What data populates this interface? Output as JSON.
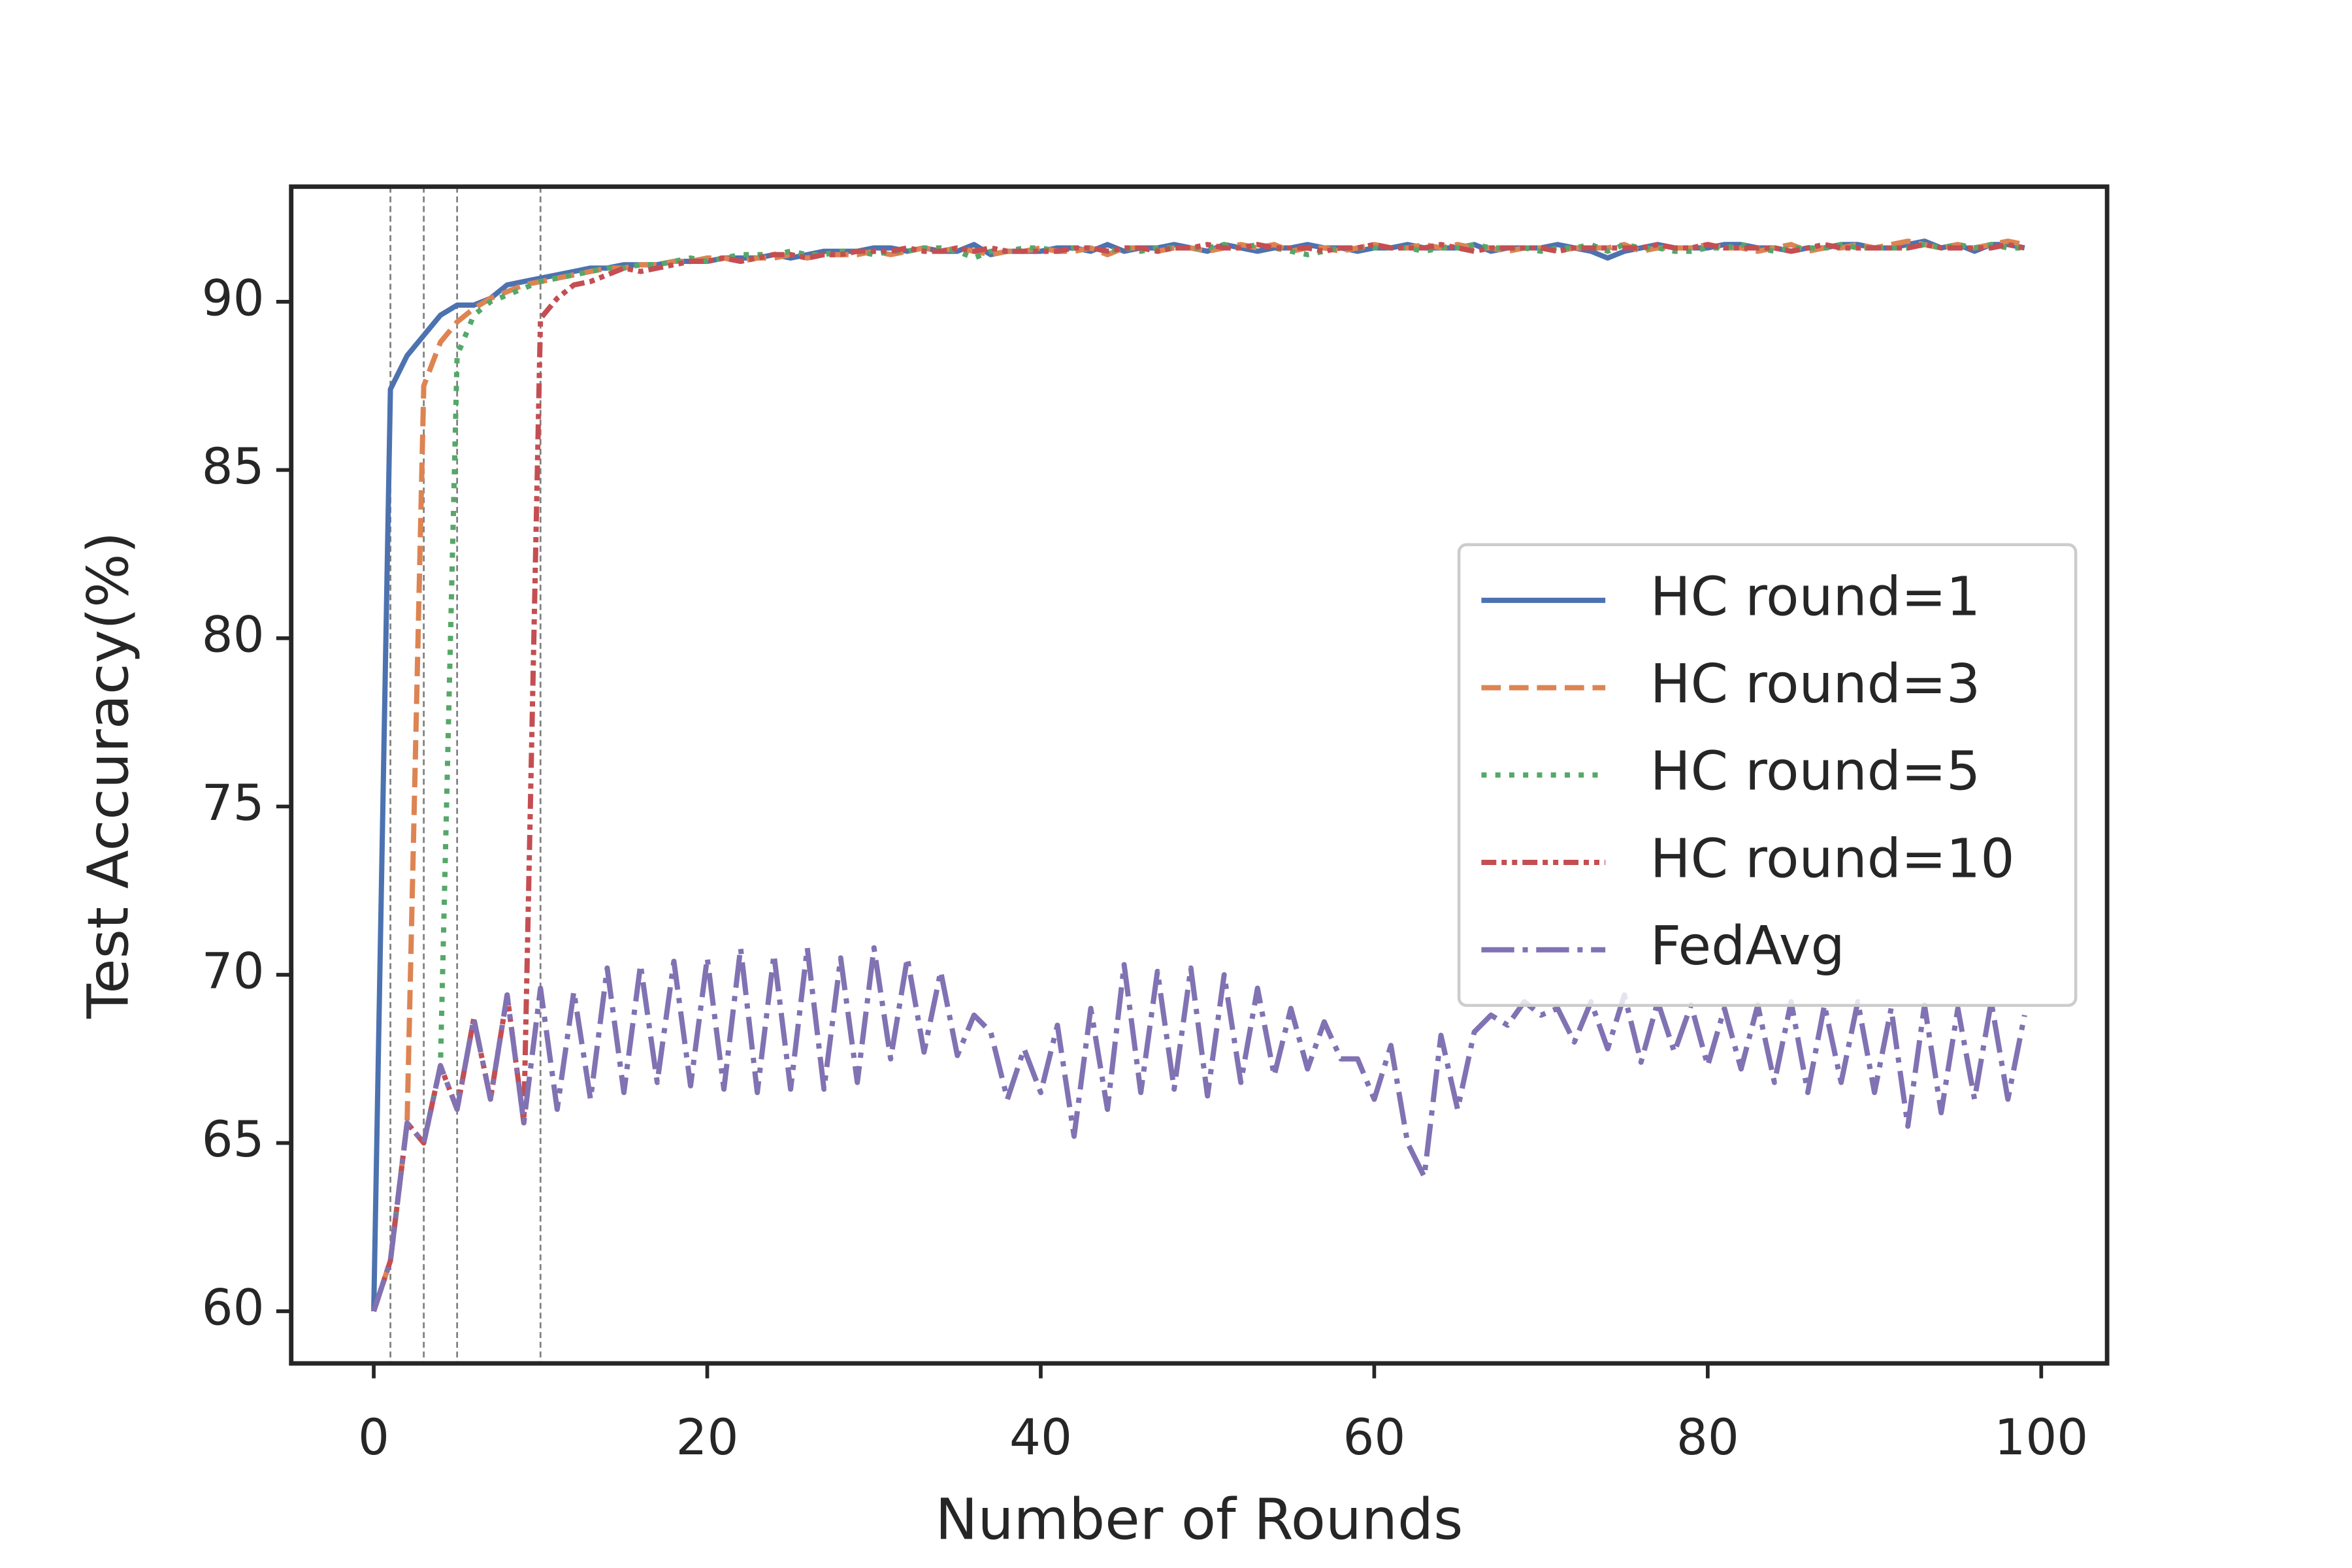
{
  "chart_data": {
    "type": "line",
    "x_label": "Number of Rounds",
    "y_label": "Test Accuracy(%)",
    "x": [
      0,
      1,
      2,
      3,
      4,
      5,
      6,
      7,
      8,
      9,
      10,
      11,
      12,
      13,
      14,
      15,
      16,
      17,
      18,
      19,
      20,
      21,
      22,
      23,
      24,
      25,
      26,
      27,
      28,
      29,
      30,
      31,
      32,
      33,
      34,
      35,
      36,
      37,
      38,
      39,
      40,
      41,
      42,
      43,
      44,
      45,
      46,
      47,
      48,
      49,
      50,
      51,
      52,
      53,
      54,
      55,
      56,
      57,
      58,
      59,
      60,
      61,
      62,
      63,
      64,
      65,
      66,
      67,
      68,
      69,
      70,
      71,
      72,
      73,
      74,
      75,
      76,
      77,
      78,
      79,
      80,
      81,
      82,
      83,
      84,
      85,
      86,
      87,
      88,
      89,
      90,
      91,
      92,
      93,
      94,
      95,
      96,
      97,
      98,
      99
    ],
    "series": [
      {
        "name": "HC round=1",
        "color": "#4c72b0",
        "linestyle": "solid",
        "values": [
          60,
          87.4,
          88.4,
          89.0,
          89.6,
          89.9,
          89.9,
          90.1,
          90.5,
          90.6,
          90.7,
          90.8,
          90.9,
          91.0,
          91.0,
          91.1,
          91.1,
          91.1,
          91.2,
          91.2,
          91.2,
          91.3,
          91.3,
          91.3,
          91.4,
          91.3,
          91.4,
          91.5,
          91.5,
          91.5,
          91.6,
          91.6,
          91.5,
          91.6,
          91.5,
          91.5,
          91.7,
          91.4,
          91.5,
          91.5,
          91.5,
          91.6,
          91.6,
          91.5,
          91.7,
          91.5,
          91.6,
          91.6,
          91.7,
          91.6,
          91.5,
          91.7,
          91.6,
          91.5,
          91.6,
          91.6,
          91.7,
          91.6,
          91.6,
          91.5,
          91.6,
          91.6,
          91.7,
          91.6,
          91.6,
          91.6,
          91.7,
          91.5,
          91.6,
          91.6,
          91.6,
          91.7,
          91.6,
          91.5,
          91.3,
          91.5,
          91.6,
          91.7,
          91.6,
          91.6,
          91.6,
          91.7,
          91.7,
          91.6,
          91.6,
          91.5,
          91.6,
          91.6,
          91.7,
          91.7,
          91.6,
          91.6,
          91.7,
          91.8,
          91.6,
          91.7,
          91.5,
          91.7,
          91.7,
          91.6
        ]
      },
      {
        "name": "HC round=3",
        "color": "#dd8452",
        "linestyle": "dashed",
        "values": [
          60,
          61.5,
          65.6,
          87.5,
          88.8,
          89.4,
          89.8,
          90.1,
          90.3,
          90.5,
          90.6,
          90.7,
          90.8,
          90.9,
          91.0,
          91.0,
          91.1,
          91.1,
          91.2,
          91.2,
          91.3,
          91.3,
          91.2,
          91.3,
          91.3,
          91.4,
          91.3,
          91.4,
          91.4,
          91.4,
          91.5,
          91.4,
          91.5,
          91.6,
          91.5,
          91.6,
          91.5,
          91.4,
          91.5,
          91.5,
          91.6,
          91.5,
          91.5,
          91.6,
          91.4,
          91.6,
          91.6,
          91.5,
          91.6,
          91.6,
          91.5,
          91.6,
          91.7,
          91.6,
          91.7,
          91.5,
          91.6,
          91.6,
          91.5,
          91.6,
          91.7,
          91.6,
          91.6,
          91.7,
          91.6,
          91.7,
          91.6,
          91.6,
          91.5,
          91.6,
          91.6,
          91.5,
          91.6,
          91.6,
          91.6,
          91.7,
          91.5,
          91.6,
          91.6,
          91.6,
          91.7,
          91.6,
          91.6,
          91.5,
          91.6,
          91.7,
          91.5,
          91.6,
          91.6,
          91.7,
          91.6,
          91.7,
          91.8,
          91.7,
          91.6,
          91.7,
          91.6,
          91.7,
          91.8,
          91.7
        ]
      },
      {
        "name": "HC round=5",
        "color": "#55a868",
        "linestyle": "dotted",
        "values": [
          60,
          61.5,
          65.6,
          65.0,
          67.3,
          88.4,
          89.6,
          90.0,
          90.2,
          90.4,
          90.6,
          90.7,
          90.8,
          90.9,
          91.0,
          91.0,
          91.1,
          91.1,
          91.2,
          91.3,
          91.2,
          91.3,
          91.4,
          91.4,
          91.4,
          91.5,
          91.4,
          91.4,
          91.5,
          91.5,
          91.4,
          91.5,
          91.5,
          91.6,
          91.6,
          91.5,
          91.3,
          91.5,
          91.5,
          91.6,
          91.6,
          91.5,
          91.6,
          91.6,
          91.5,
          91.6,
          91.5,
          91.6,
          91.6,
          91.6,
          91.6,
          91.7,
          91.6,
          91.7,
          91.6,
          91.5,
          91.4,
          91.5,
          91.6,
          91.6,
          91.6,
          91.6,
          91.6,
          91.5,
          91.6,
          91.6,
          91.7,
          91.6,
          91.6,
          91.6,
          91.5,
          91.6,
          91.6,
          91.7,
          91.5,
          91.7,
          91.6,
          91.6,
          91.5,
          91.5,
          91.6,
          91.6,
          91.7,
          91.6,
          91.5,
          91.6,
          91.6,
          91.6,
          91.7,
          91.6,
          91.6,
          91.6,
          91.6,
          91.7,
          91.6,
          91.7,
          91.6,
          91.7,
          91.6,
          91.6
        ]
      },
      {
        "name": "HC round=10",
        "color": "#c44e52",
        "linestyle": "dashdotdot",
        "values": [
          60,
          61.5,
          65.6,
          65.0,
          67.3,
          66.0,
          68.7,
          66.3,
          69.4,
          65.6,
          89.5,
          90.1,
          90.5,
          90.6,
          90.8,
          91.0,
          90.9,
          91.0,
          91.1,
          91.2,
          91.2,
          91.3,
          91.2,
          91.3,
          91.4,
          91.4,
          91.3,
          91.4,
          91.4,
          91.5,
          91.5,
          91.5,
          91.6,
          91.5,
          91.5,
          91.6,
          91.5,
          91.6,
          91.5,
          91.5,
          91.5,
          91.5,
          91.6,
          91.6,
          91.5,
          91.6,
          91.6,
          91.5,
          91.6,
          91.6,
          91.7,
          91.6,
          91.6,
          91.7,
          91.6,
          91.6,
          91.6,
          91.5,
          91.6,
          91.6,
          91.7,
          91.6,
          91.6,
          91.6,
          91.7,
          91.6,
          91.5,
          91.6,
          91.6,
          91.6,
          91.6,
          91.5,
          91.6,
          91.6,
          91.6,
          91.6,
          91.6,
          91.7,
          91.6,
          91.6,
          91.7,
          91.6,
          91.6,
          91.6,
          91.6,
          91.5,
          91.6,
          91.7,
          91.6,
          91.6,
          91.6,
          91.6,
          91.6,
          91.7,
          91.6,
          91.6,
          91.6,
          91.6,
          91.7,
          91.6
        ]
      },
      {
        "name": "FedAvg",
        "color": "#8172b3",
        "linestyle": "dashdot",
        "values": [
          60,
          61.5,
          65.6,
          65.0,
          67.3,
          66.0,
          68.7,
          66.3,
          69.4,
          65.6,
          69.6,
          66.0,
          69.5,
          66.3,
          70.2,
          66.5,
          70.3,
          66.8,
          70.4,
          66.7,
          70.5,
          66.6,
          70.8,
          66.5,
          70.6,
          66.6,
          70.8,
          66.6,
          70.5,
          66.8,
          70.8,
          67.5,
          70.5,
          67.7,
          70.1,
          67.6,
          68.8,
          68.3,
          66.3,
          67.8,
          66.5,
          68.5,
          65.2,
          69.0,
          66.0,
          70.3,
          66.5,
          70.1,
          66.6,
          70.2,
          66.4,
          70.0,
          66.8,
          69.6,
          67.0,
          69.0,
          67.2,
          68.6,
          67.5,
          67.5,
          66.3,
          67.9,
          65.0,
          64.0,
          68.2,
          66.0,
          68.3,
          68.8,
          68.5,
          69.2,
          68.8,
          69.0,
          68.0,
          69.2,
          67.8,
          69.4,
          67.4,
          69.2,
          67.7,
          69.1,
          67.3,
          69.0,
          67.2,
          69.1,
          66.8,
          69.2,
          66.5,
          69.1,
          66.8,
          69.2,
          66.5,
          69.0,
          65.5,
          69.1,
          65.9,
          69.0,
          66.3,
          69.2,
          66.3,
          68.8
        ]
      }
    ],
    "vlines": [
      1,
      3,
      5,
      10
    ],
    "xlim": [
      -4.95,
      103.95
    ],
    "xticks": [
      0,
      20,
      40,
      60,
      80,
      100
    ],
    "ylim": [
      58.45,
      93.42
    ],
    "yticks": [
      60,
      65,
      70,
      75,
      80,
      85,
      90
    ],
    "legend": "center right",
    "grid": false
  }
}
